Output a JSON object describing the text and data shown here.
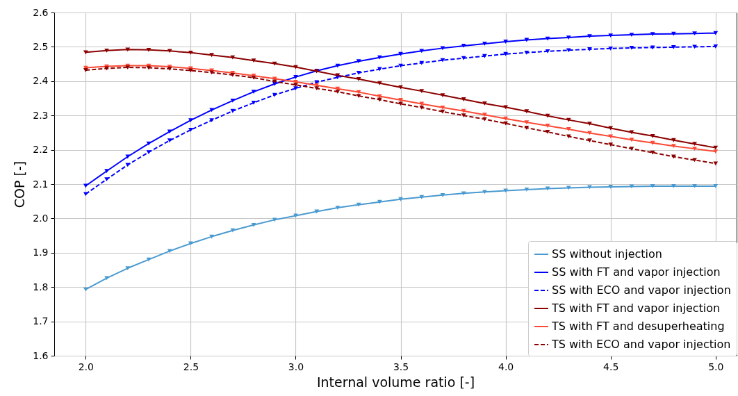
{
  "chart_data": {
    "type": "line",
    "xlabel": "Internal volume ratio [-]",
    "ylabel": "COP [-]",
    "x": [
      2.0,
      2.1,
      2.2,
      2.3,
      2.4,
      2.5,
      2.6,
      2.7,
      2.8,
      2.9,
      3.0,
      3.1,
      3.2,
      3.3,
      3.4,
      3.5,
      3.6,
      3.7,
      3.8,
      3.9,
      4.0,
      4.1,
      4.2,
      4.3,
      4.4,
      4.5,
      4.6,
      4.7,
      4.8,
      4.9,
      5.0
    ],
    "series": [
      {
        "name": "SS without injection",
        "color": "#4a9ad0",
        "line_style": "solid",
        "values": [
          1.793,
          1.826,
          1.855,
          1.88,
          1.905,
          1.927,
          1.947,
          1.965,
          1.981,
          1.996,
          2.008,
          2.02,
          2.031,
          2.04,
          2.048,
          2.056,
          2.062,
          2.068,
          2.073,
          2.077,
          2.081,
          2.084,
          2.087,
          2.089,
          2.091,
          2.092,
          2.093,
          2.094,
          2.094,
          2.094,
          2.094
        ]
      },
      {
        "name": "SS with FT and vapor injection",
        "color": "#0000ff",
        "line_style": "solid",
        "values": [
          2.095,
          2.138,
          2.18,
          2.218,
          2.253,
          2.286,
          2.316,
          2.343,
          2.369,
          2.392,
          2.412,
          2.43,
          2.445,
          2.458,
          2.469,
          2.479,
          2.488,
          2.496,
          2.503,
          2.509,
          2.515,
          2.52,
          2.524,
          2.527,
          2.531,
          2.533,
          2.535,
          2.537,
          2.538,
          2.539,
          2.54
        ]
      },
      {
        "name": "SS with ECO and vapor injection",
        "color": "#0000ff",
        "line_style": "dashed",
        "values": [
          2.071,
          2.114,
          2.156,
          2.193,
          2.227,
          2.258,
          2.286,
          2.313,
          2.337,
          2.36,
          2.379,
          2.397,
          2.411,
          2.424,
          2.435,
          2.445,
          2.453,
          2.461,
          2.467,
          2.473,
          2.479,
          2.483,
          2.487,
          2.49,
          2.493,
          2.495,
          2.497,
          2.498,
          2.499,
          2.5,
          2.501
        ]
      },
      {
        "name": "TS with FT and vapor injection",
        "color": "#8b0000",
        "line_style": "solid",
        "values": [
          2.484,
          2.489,
          2.492,
          2.491,
          2.488,
          2.483,
          2.476,
          2.469,
          2.46,
          2.451,
          2.441,
          2.429,
          2.417,
          2.406,
          2.394,
          2.382,
          2.371,
          2.359,
          2.347,
          2.335,
          2.324,
          2.312,
          2.299,
          2.287,
          2.276,
          2.263,
          2.251,
          2.24,
          2.228,
          2.217,
          2.206
        ]
      },
      {
        "name": "TS with FT and desuperheating",
        "color": "#fb4a36",
        "line_style": "solid",
        "values": [
          2.439,
          2.443,
          2.445,
          2.445,
          2.442,
          2.437,
          2.431,
          2.424,
          2.416,
          2.407,
          2.398,
          2.388,
          2.378,
          2.368,
          2.356,
          2.345,
          2.334,
          2.323,
          2.313,
          2.302,
          2.291,
          2.28,
          2.27,
          2.26,
          2.249,
          2.239,
          2.229,
          2.22,
          2.211,
          2.203,
          2.195
        ]
      },
      {
        "name": "TS with ECO and vapor injection",
        "color": "#8b0000",
        "line_style": "dashed",
        "values": [
          2.432,
          2.437,
          2.44,
          2.439,
          2.436,
          2.431,
          2.425,
          2.418,
          2.41,
          2.399,
          2.389,
          2.379,
          2.369,
          2.357,
          2.346,
          2.334,
          2.323,
          2.311,
          2.3,
          2.289,
          2.277,
          2.264,
          2.252,
          2.239,
          2.227,
          2.215,
          2.203,
          2.192,
          2.18,
          2.17,
          2.16
        ]
      }
    ],
    "xlim": [
      1.85,
      5.1
    ],
    "ylim": [
      1.6,
      2.6
    ],
    "xticks": [
      {
        "value": 2,
        "label": "2.0"
      },
      2.5,
      {
        "value": 3,
        "label": "3.0"
      },
      3.5,
      {
        "value": 4,
        "label": "4.0"
      },
      4.5,
      {
        "value": 5,
        "label": "5.0"
      }
    ],
    "yticks": [
      1.6,
      1.7,
      1.8,
      1.9,
      {
        "value": 2,
        "label": "2.0"
      },
      2.1,
      2.2,
      2.3,
      2.4,
      2.5,
      2.6
    ],
    "grid": true,
    "legend": "bottom right",
    "marker": "triangle"
  }
}
